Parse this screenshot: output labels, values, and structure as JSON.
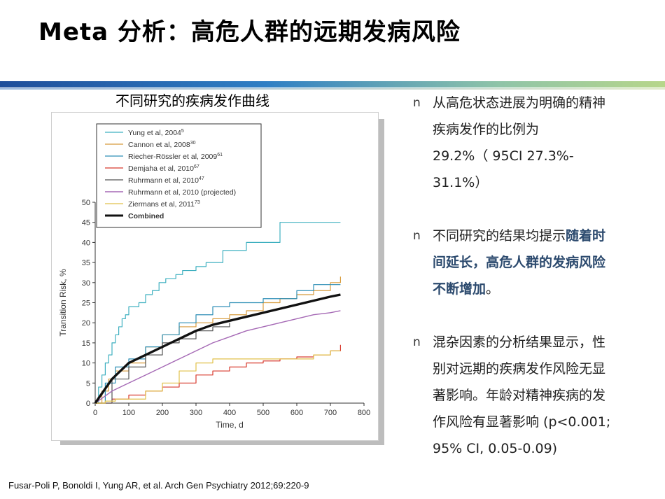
{
  "title": "Meta 分析：高危人群的远期发病风险",
  "chart_caption": "不同研究的疾病发作曲线",
  "bullets": [
    {
      "marker": "n",
      "lines": [
        "从高危状态进展为明确的精神",
        "疾病发作的比例为",
        "29.2%（ 95CI 27.3%-",
        "31.1%）"
      ]
    },
    {
      "marker": "n",
      "line1_plain": "不同研究的结果均提示",
      "line1_bold": "随着时",
      "line2_bold": "间延长，高危人群的发病风险",
      "line3_bold": "不断增加",
      "line3_plain": "。"
    },
    {
      "marker": "n",
      "lines": [
        "混杂因素的分析结果显示，性",
        "别对远期的疾病发作风险无显",
        "著影响。年龄对精神疾病的发",
        "作风险有显著影响 (p<0.001;",
        "95% CI, 0.05-0.09)"
      ]
    }
  ],
  "footer": "Fusar-Poli P, Bonoldi I, Yung AR, et al. Arch Gen Psychiatry 2012;69:220-9",
  "chart_data": {
    "type": "line",
    "xlabel": "Time, d",
    "ylabel": "Transition Risk, %",
    "xlim": [
      0,
      800
    ],
    "ylim": [
      0,
      50
    ],
    "xticks": [
      0,
      100,
      200,
      300,
      400,
      500,
      600,
      700,
      800
    ],
    "yticks": [
      0,
      5,
      10,
      15,
      20,
      25,
      30,
      35,
      40,
      45,
      50
    ],
    "legend_position": "top-left",
    "series": [
      {
        "name": "Yung et al, 2004",
        "sup": "5",
        "color": "#3fb0c0",
        "width": 1.2,
        "step": true,
        "x": [
          0,
          10,
          20,
          30,
          40,
          50,
          60,
          70,
          80,
          90,
          100,
          110,
          130,
          150,
          170,
          190,
          210,
          240,
          260,
          300,
          330,
          380,
          450,
          550,
          730
        ],
        "y": [
          0,
          4,
          7,
          10,
          12,
          15,
          17,
          19,
          21,
          22,
          24,
          24,
          25,
          27,
          28,
          30,
          31,
          32,
          33,
          34,
          35,
          38,
          40,
          45,
          45
        ]
      },
      {
        "name": "Cannon et al, 2008",
        "sup": "30",
        "color": "#d89b3c",
        "width": 1.2,
        "step": true,
        "x": [
          0,
          20,
          40,
          60,
          100,
          150,
          200,
          250,
          300,
          350,
          400,
          450,
          500,
          550,
          600,
          650,
          700,
          730
        ],
        "y": [
          0,
          3,
          6,
          8,
          10,
          14,
          17,
          19,
          20,
          21,
          22,
          23,
          25,
          26,
          27,
          28,
          30,
          31.5
        ]
      },
      {
        "name": "Riecher-Rössler et al, 2009",
        "sup": "61",
        "color": "#2e8fb6",
        "width": 1.2,
        "step": true,
        "x": [
          0,
          30,
          60,
          100,
          150,
          200,
          250,
          300,
          350,
          400,
          500,
          600,
          650,
          730
        ],
        "y": [
          0,
          5,
          9,
          11,
          14,
          17,
          20,
          22,
          24,
          25,
          26,
          28,
          29.5,
          29.5
        ]
      },
      {
        "name": "Demjaha et al, 2010",
        "sup": "67",
        "color": "#d83b2f",
        "width": 1.2,
        "step": true,
        "x": [
          0,
          50,
          100,
          150,
          200,
          250,
          300,
          350,
          400,
          450,
          500,
          550,
          600,
          650,
          700,
          730
        ],
        "y": [
          0,
          1,
          2,
          3,
          4,
          5,
          7,
          8,
          9,
          10,
          10.5,
          11,
          11.5,
          12,
          13,
          14.5
        ]
      },
      {
        "name": "Ruhrmann et al, 2010",
        "sup": "47",
        "color": "#555555",
        "width": 1.2,
        "step": true,
        "x": [
          0,
          50,
          100,
          150,
          200,
          250,
          300,
          350,
          400
        ],
        "y": [
          0,
          6,
          9,
          12,
          15,
          16,
          18,
          19,
          20
        ]
      },
      {
        "name": "Ruhrmann et al, 2010 (projected)",
        "sup": "",
        "color": "#a569b5",
        "width": 1.4,
        "step": false,
        "x": [
          0,
          50,
          100,
          150,
          200,
          250,
          300,
          350,
          400,
          450,
          500,
          550,
          600,
          650,
          700,
          730
        ],
        "y": [
          0,
          3,
          5,
          7,
          9,
          11,
          13,
          15,
          16.5,
          18,
          19,
          20,
          21,
          22,
          22.5,
          23
        ]
      },
      {
        "name": "Ziermans et al, 2011",
        "sup": "73",
        "color": "#e1c14b",
        "width": 1.2,
        "step": true,
        "x": [
          0,
          30,
          60,
          150,
          200,
          250,
          300,
          350,
          400,
          450,
          500,
          600,
          650,
          700,
          730
        ],
        "y": [
          0,
          0.5,
          1,
          3,
          5,
          8,
          10,
          11,
          11,
          11,
          11,
          11,
          12,
          13,
          13
        ]
      },
      {
        "name": "Combined",
        "sup": "",
        "color": "#111111",
        "width": 3.4,
        "step": false,
        "x": [
          0,
          25,
          50,
          75,
          100,
          150,
          200,
          250,
          300,
          350,
          400,
          450,
          500,
          550,
          600,
          650,
          700,
          730
        ],
        "y": [
          0,
          3,
          6,
          8,
          10,
          12,
          14,
          16,
          18,
          19.5,
          20.5,
          21.5,
          22.5,
          23.5,
          24.5,
          25.5,
          26.5,
          27
        ]
      }
    ]
  }
}
